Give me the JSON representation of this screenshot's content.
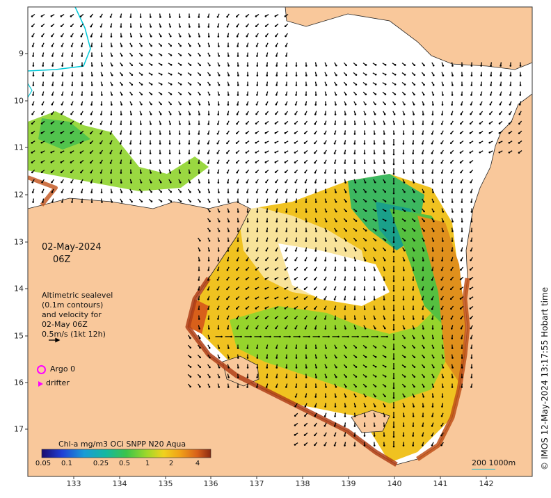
{
  "date": "02-May-2024",
  "time": "06Z",
  "legend_text": [
    "Altimetric sealevel",
    "(0.1m contours)",
    "and velocity for",
    "02-May 06Z",
    "0.5m/s (1kt 12h)"
  ],
  "argo_label": "Argo 0",
  "drifter_label": "drifter",
  "colorbar": {
    "title": "Chl-a mg/m3 OCi SNPP N20 Aqua",
    "ticks": [
      "0.05",
      "0.1",
      "0.25",
      "0.5",
      "1",
      "2",
      "4"
    ]
  },
  "x_ticks": [
    "133",
    "134",
    "135",
    "136",
    "137",
    "138",
    "139",
    "140",
    "141",
    "142"
  ],
  "y_ticks": [
    "9",
    "10",
    "11",
    "12",
    "13",
    "14",
    "15",
    "16",
    "17"
  ],
  "scale_label": "200  1000m",
  "copyright": "© IMOS 12-May-2024 13:17:55 Hobart time",
  "colors": {
    "land": "#f9c89b",
    "sea": "#ffffff",
    "argo": "#ff00ff",
    "bathymetry": "#00c8d8"
  }
}
